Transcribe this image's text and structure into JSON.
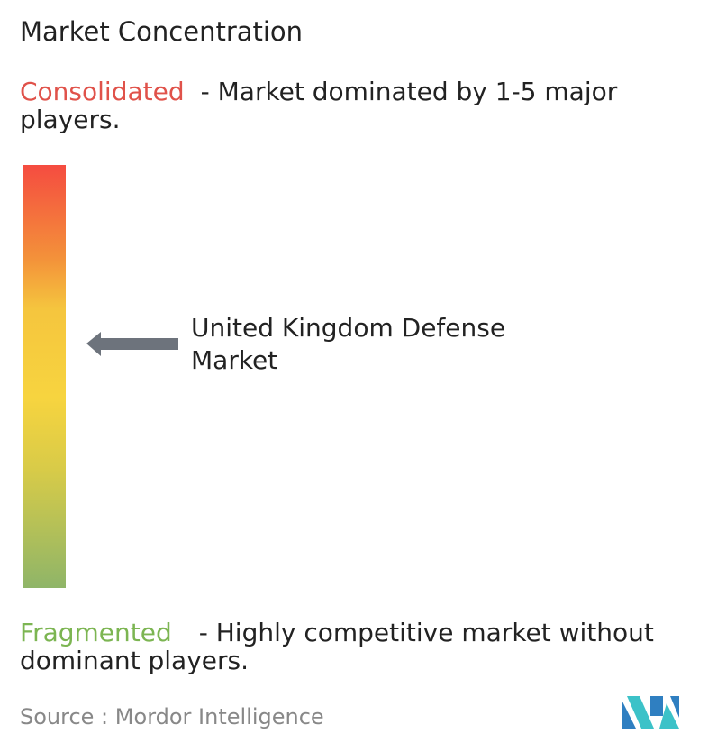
{
  "header": {
    "title": "Market Concentration"
  },
  "consolidated": {
    "label": "Consolidated",
    "description": "- Market dominated by 1-5 major players."
  },
  "market": {
    "label": "United Kingdom Defense Market"
  },
  "fragmented": {
    "label": "Fragmented",
    "description": "- Highly competitive market without dominant players."
  },
  "source": {
    "label": "Source :",
    "name": "Mordor Intelligence"
  }
}
